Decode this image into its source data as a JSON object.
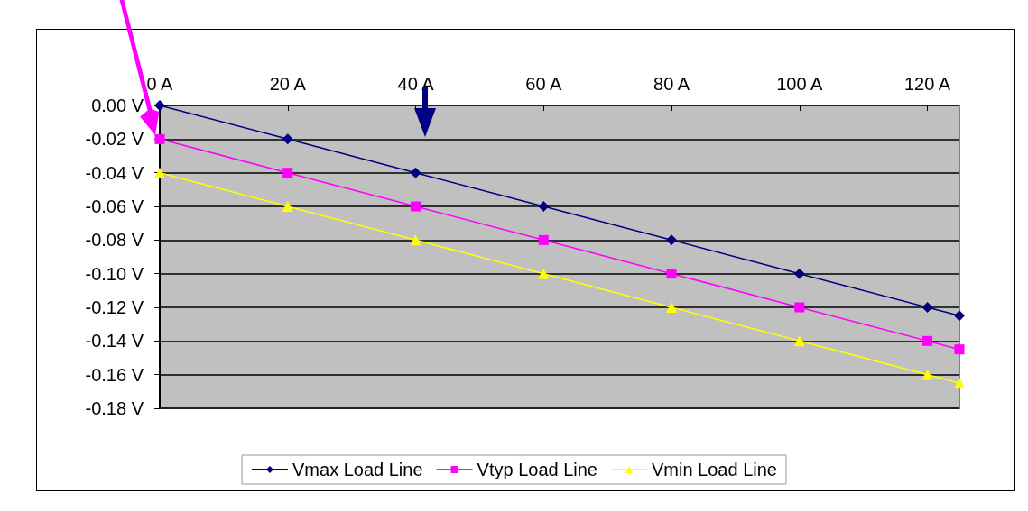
{
  "chart_data": {
    "type": "line",
    "x": [
      0,
      20,
      40,
      60,
      80,
      100,
      120,
      125
    ],
    "series": [
      {
        "name": "Vmax Load Line",
        "color": "#000080",
        "marker": "diamond",
        "values": [
          0,
          -0.02,
          -0.04,
          -0.06,
          -0.08,
          -0.1,
          -0.12,
          -0.125
        ]
      },
      {
        "name": "Vtyp Load Line",
        "color": "#ff00ff",
        "marker": "square",
        "values": [
          -0.02,
          -0.04,
          -0.06,
          -0.08,
          -0.1,
          -0.12,
          -0.14,
          -0.145
        ]
      },
      {
        "name": "Vmin Load Line",
        "color": "#ffff00",
        "marker": "triangle",
        "values": [
          -0.04,
          -0.06,
          -0.08,
          -0.1,
          -0.12,
          -0.14,
          -0.16,
          -0.165
        ]
      }
    ],
    "xlim": [
      0,
      125
    ],
    "xticks": [
      {
        "value": 0,
        "label": "0 A"
      },
      {
        "value": 20,
        "label": "20 A"
      },
      {
        "value": 40,
        "label": "40 A"
      },
      {
        "value": 60,
        "label": "60 A"
      },
      {
        "value": 80,
        "label": "80 A"
      },
      {
        "value": 100,
        "label": "100 A"
      },
      {
        "value": 120,
        "label": "120 A"
      }
    ],
    "ylim": [
      -0.18,
      0
    ],
    "yticks": [
      {
        "value": 0,
        "label": "0.00 V"
      },
      {
        "value": -0.02,
        "label": "-0.02 V"
      },
      {
        "value": -0.04,
        "label": "-0.04 V"
      },
      {
        "value": -0.06,
        "label": "-0.06 V"
      },
      {
        "value": -0.08,
        "label": "-0.08 V"
      },
      {
        "value": -0.1,
        "label": "-0.10 V"
      },
      {
        "value": -0.12,
        "label": "-0.12 V"
      },
      {
        "value": -0.14,
        "label": "-0.14 V"
      },
      {
        "value": -0.16,
        "label": "-0.16 V"
      },
      {
        "value": -0.18,
        "label": "-0.18 V"
      }
    ],
    "grid": "y",
    "legend": "bottom"
  }
}
